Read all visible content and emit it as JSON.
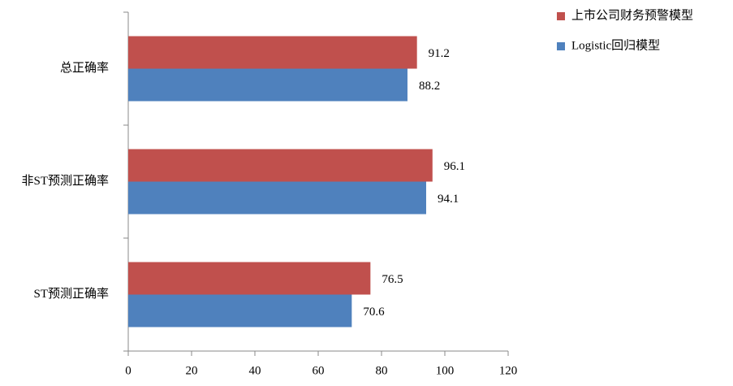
{
  "chart_data": {
    "type": "barh",
    "categories": [
      "总正确率",
      "非ST预测正确率",
      "ST预测正确率"
    ],
    "series": [
      {
        "name": "上市公司财务预警模型",
        "color": "#c0504d",
        "values": [
          91.2,
          96.1,
          76.5
        ]
      },
      {
        "name": "Logistic回归模型",
        "color": "#4f81bd",
        "values": [
          88.2,
          94.1,
          70.6
        ]
      }
    ],
    "xlim": [
      0,
      120
    ],
    "xticks": [
      0,
      20,
      40,
      60,
      80,
      100,
      120
    ]
  }
}
